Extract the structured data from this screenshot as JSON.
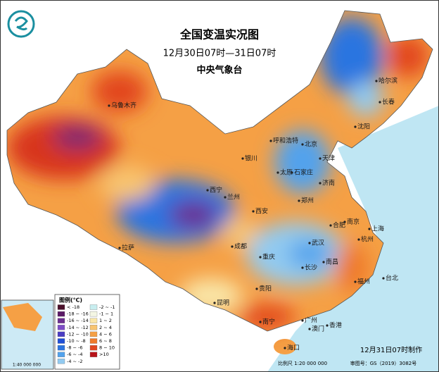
{
  "header": {
    "title": "全国变温实况图",
    "subtitle": "12月30日07时—31日07时",
    "agency": "中央气象台"
  },
  "legend": {
    "title": "图例(℃)",
    "items": [
      {
        "label": "< -18",
        "color": "#4a0f2a"
      },
      {
        "label": "-18 ~ -16",
        "color": "#5b1b66"
      },
      {
        "label": "-16 ~ -14",
        "color": "#6c2e90"
      },
      {
        "label": "-14 ~ -12",
        "color": "#7d4cc6"
      },
      {
        "label": "-12 ~ -10",
        "color": "#4b3dc2"
      },
      {
        "label": "-10 ~ -8",
        "color": "#1f4fd6"
      },
      {
        "label": "-8 ~ -6",
        "color": "#2b74e0"
      },
      {
        "label": "-6 ~ -4",
        "color": "#52a2ec"
      },
      {
        "label": "-4 ~ -2",
        "color": "#92caf0"
      },
      {
        "label": "-2 ~ -1",
        "color": "#c8eef0"
      },
      {
        "label": "-1 ~ 1",
        "color": "#f4f6e4"
      },
      {
        "label": "1 ~ 2",
        "color": "#f9e6a8"
      },
      {
        "label": "2 ~ 4",
        "color": "#f8c470"
      },
      {
        "label": "4 ~ 6",
        "color": "#f5a045"
      },
      {
        "label": "6 ~ 8",
        "color": "#ef7a2a"
      },
      {
        "label": "8 ~ 10",
        "color": "#e2461e"
      },
      {
        "label": ">10",
        "color": "#b8141a"
      }
    ]
  },
  "cities": [
    "乌鲁木齐",
    "哈尔滨",
    "长春",
    "沈阳",
    "呼和浩特",
    "北京",
    "天津",
    "石家庄",
    "太原",
    "济南",
    "银川",
    "兰州",
    "西宁",
    "西安",
    "郑州",
    "合肥",
    "南京",
    "上海",
    "杭州",
    "武汉",
    "南昌",
    "长沙",
    "福州",
    "台北",
    "拉萨",
    "成都",
    "重庆",
    "贵阳",
    "昆明",
    "南宁",
    "广州",
    "澳门",
    "香港",
    "海口"
  ],
  "footer": {
    "made": "12月31日07时制作",
    "scale": "比例尺 1:20 000 000",
    "approval": "审图号：GS（2019）3082号"
  },
  "inset": {
    "scale": "1:40 000 000"
  }
}
